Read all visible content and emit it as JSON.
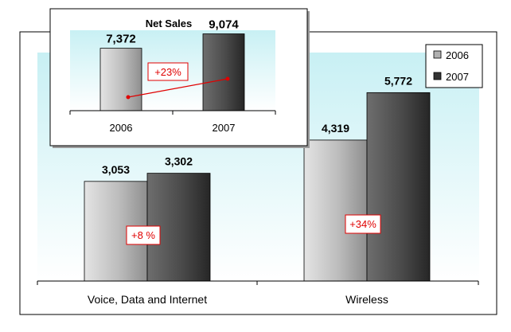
{
  "chart_data": [
    {
      "type": "bar",
      "title": "",
      "categories": [
        "Voice, Data and Internet",
        "Wireless"
      ],
      "series": [
        {
          "name": "2006",
          "values": [
            3053,
            4319
          ],
          "labels": [
            "3,053",
            "4,319"
          ]
        },
        {
          "name": "2007",
          "values": [
            3302,
            5772
          ],
          "labels": [
            "3,302",
            "5,772"
          ]
        }
      ],
      "annotations": [
        "+8 %",
        "+34%"
      ],
      "ylim": [
        0,
        7000
      ],
      "grid": false,
      "legend": "top-right"
    },
    {
      "type": "bar",
      "title": "Net Sales",
      "categories": [
        "2006",
        "2007"
      ],
      "values": [
        7372,
        9074
      ],
      "labels": [
        "7,372",
        "9,074"
      ],
      "annotations": [
        "+23%"
      ],
      "ylim": [
        0,
        9500
      ],
      "grid": false
    }
  ],
  "colors": {
    "bar_2006_light": "#e2e2e2",
    "bar_2006_dark": "#9a9a9a",
    "bar_2007_light": "#707070",
    "bar_2007_dark": "#2e2e2e",
    "plot_bg_top": "#c8f0f4",
    "plot_bg_bottom": "#ffffff",
    "annotation": "#e00000"
  }
}
